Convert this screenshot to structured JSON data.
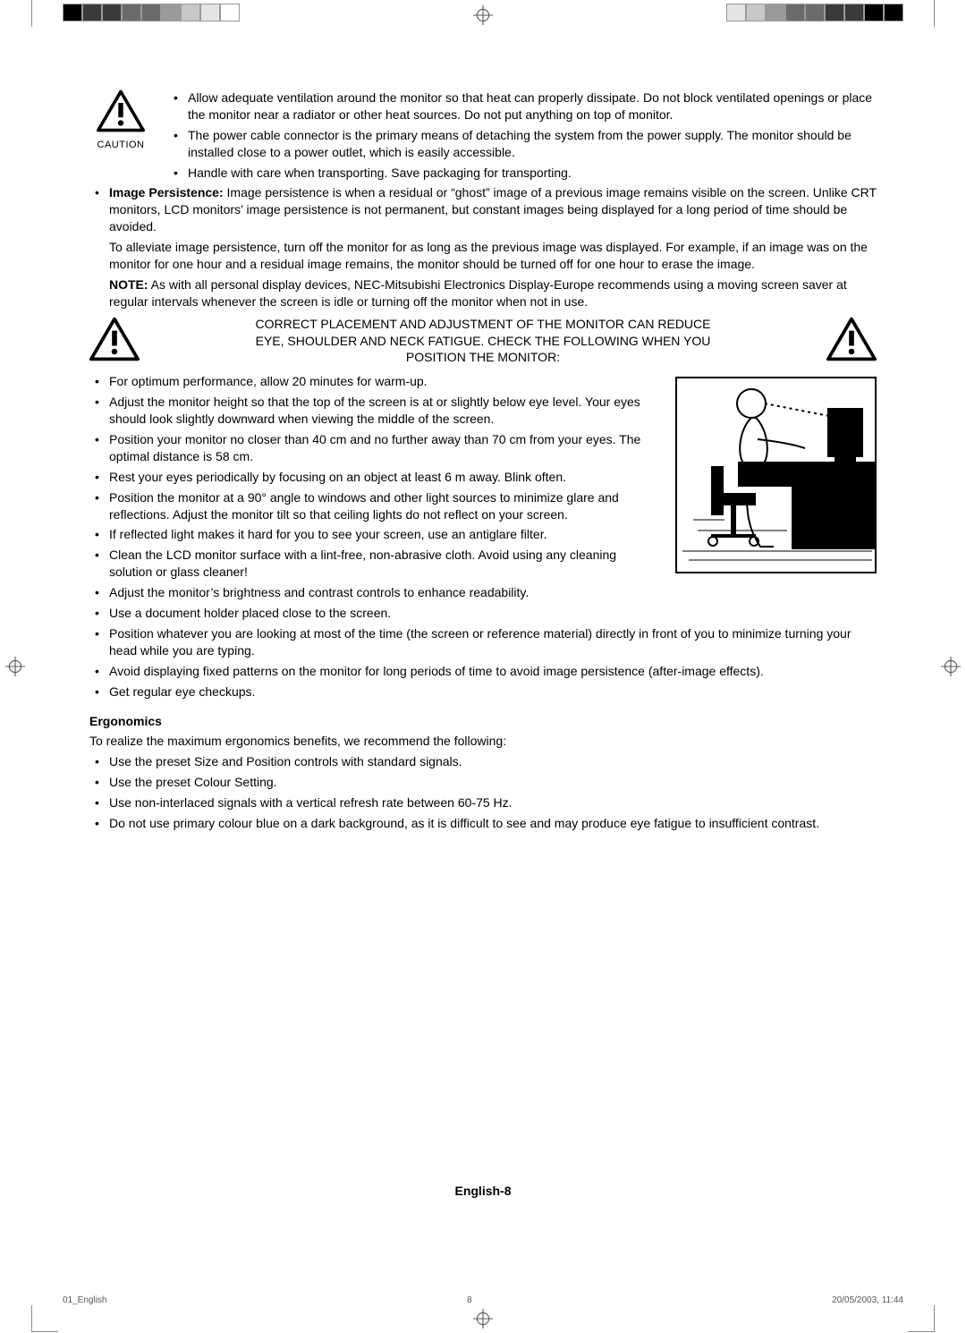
{
  "print": {
    "swatches_left": [
      "#000000",
      "#3a3a3a",
      "#3a3a3a",
      "#6b6b6b",
      "#6b6b6b",
      "#9a9a9a",
      "#c8c8c8",
      "#e4e4e4",
      "#ffffff"
    ],
    "swatches_right": [
      "#000000",
      "#000000",
      "#3a3a3a",
      "#3a3a3a",
      "#6b6b6b",
      "#6b6b6b",
      "#9a9a9a",
      "#c8c8c8",
      "#e4e4e4"
    ]
  },
  "caution_label": "CAUTION",
  "top_bullets": [
    "Allow adequate ventilation around the monitor so that heat can properly dissipate. Do not block ventilated openings or place the monitor near a radiator or other heat sources. Do not put anything on top of monitor.",
    "The power cable connector is the primary means of detaching the system from the power supply. The monitor should be installed close to a power outlet, which is easily accessible.",
    "Handle with care when transporting. Save packaging for transporting."
  ],
  "persistence": {
    "label": "Image Persistence:",
    "text": " Image persistence is when a residual or “ghost” image of a previous image remains visible on the screen. Unlike CRT monitors, LCD monitors’ image persistence is not permanent, but constant images being displayed for a long period of time should be avoided.",
    "para2": "To alleviate image persistence, turn off the monitor for as long as the previous image was displayed. For example, if an image was on the monitor for one hour and a residual image remains, the monitor should be turned off for one hour to erase the image."
  },
  "note": {
    "label": "NOTE:",
    "text": "  As with all personal display devices, NEC-Mitsubishi Electronics Display-Europe recommends using a moving screen saver at regular intervals whenever the screen is idle or turning off the monitor when not in use."
  },
  "placement_heading": "CORRECT PLACEMENT AND ADJUSTMENT OF THE MONITOR CAN REDUCE EYE, SHOULDER AND NECK FATIGUE. CHECK THE FOLLOWING WHEN YOU POSITION THE MONITOR:",
  "placement_bullets": [
    "For optimum performance, allow 20 minutes for warm-up.",
    "Adjust the monitor height so that the top of the screen is at or slightly below eye level. Your eyes should look slightly downward when viewing the middle of the screen.",
    "Position your monitor no closer than 40 cm and no further away than 70 cm from your eyes. The optimal distance is 58 cm.",
    "Rest your eyes periodically by focusing on an object at least 6 m away. Blink often.",
    "Position the monitor at a 90° angle to windows and other light sources to minimize glare and reflections. Adjust the monitor tilt so that ceiling lights do not reflect on your screen.",
    "If reflected light makes it hard for you to see your screen, use an antiglare filter.",
    "Clean the LCD monitor surface with a lint-free, non-abrasive cloth. Avoid using any cleaning solution or glass cleaner!",
    "Adjust the monitor’s brightness and contrast controls to enhance readability.",
    "Use a document holder placed close to the screen.",
    "Position whatever you are looking at most of the time (the screen or reference material) directly in front of you to minimize turning your head while you are typing.",
    "Avoid displaying fixed patterns on the monitor for long periods of time to avoid image persistence (after-image effects).",
    "Get regular eye checkups."
  ],
  "ergo_heading": "Ergonomics",
  "ergo_intro": "To realize the maximum ergonomics benefits, we recommend the following:",
  "ergo_bullets": [
    "Use the preset Size and Position controls with standard signals.",
    "Use the preset Colour Setting.",
    "Use non-interlaced signals with a vertical refresh rate between 60-75 Hz.",
    "Do not use primary colour blue on a dark background, as it is difficult to see and may produce eye fatigue to insufficient contrast."
  ],
  "page_footer": "English-8",
  "imprint": {
    "file": "01_English",
    "page": "8",
    "date": "20/05/2003, 11:44"
  }
}
